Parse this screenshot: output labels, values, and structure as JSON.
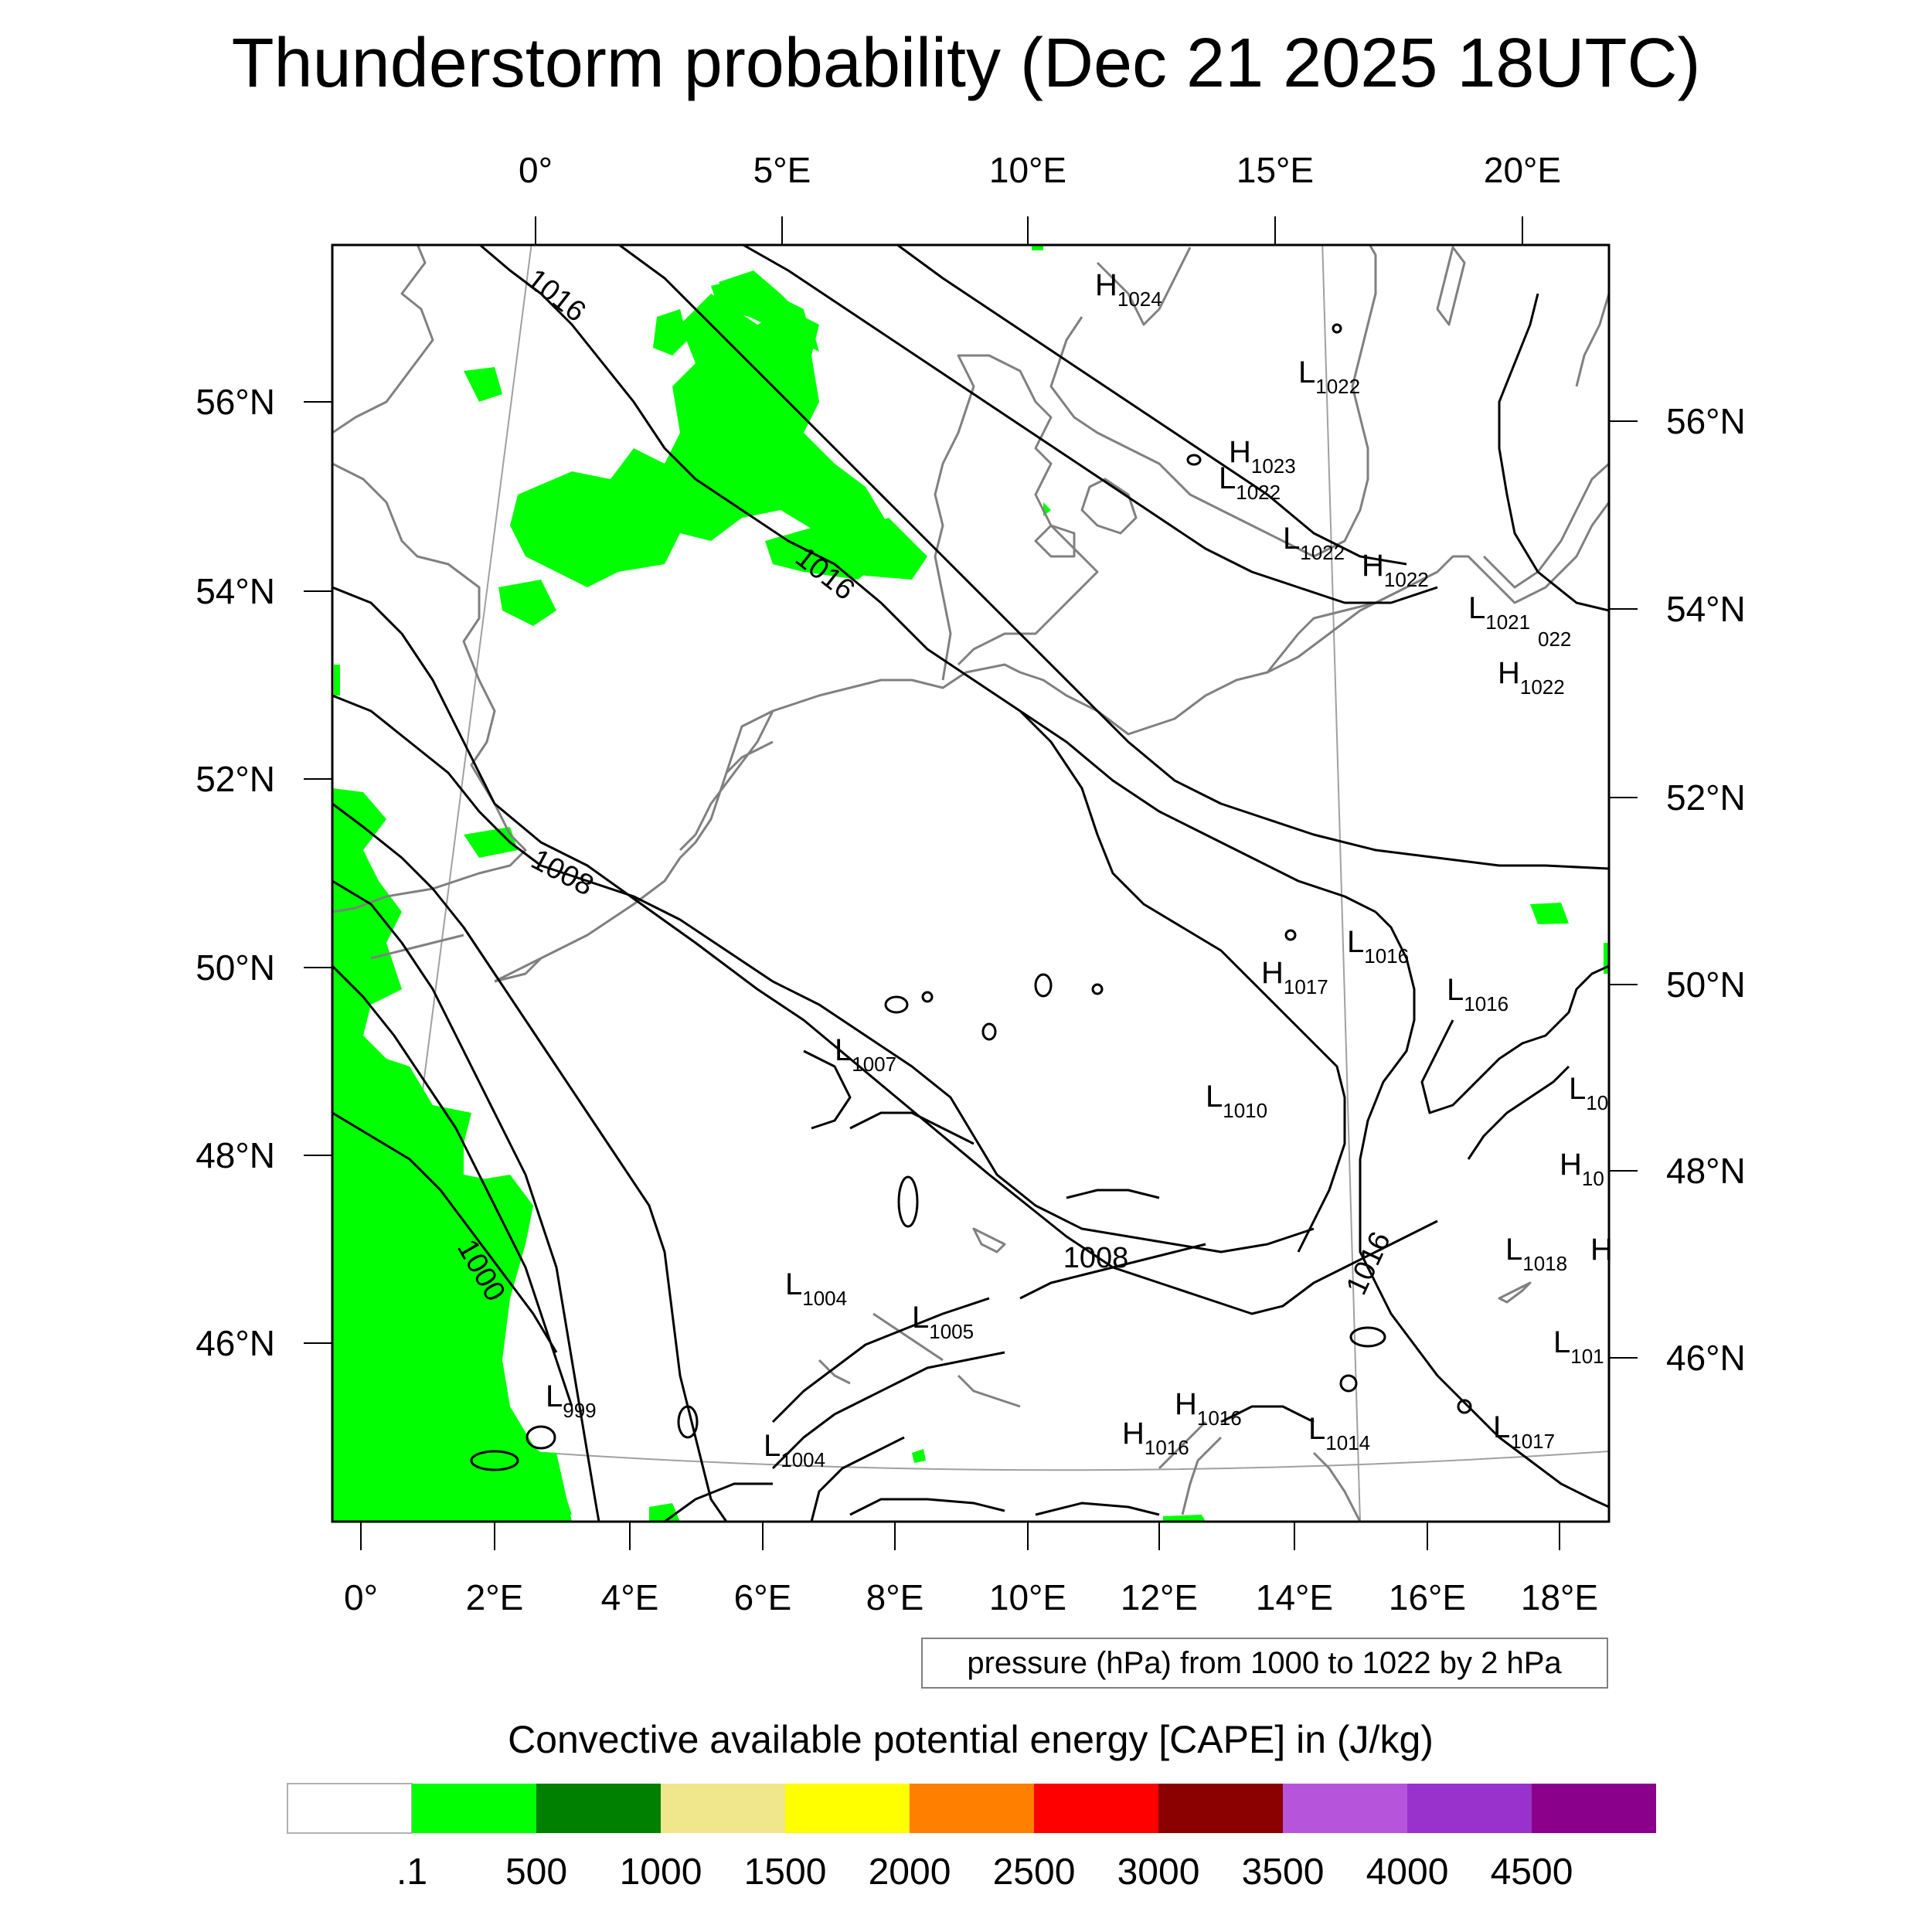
{
  "title": "Thunderstorm probability (Dec 21 2025 18UTC)",
  "top_lon_labels": [
    "0°",
    "5°E",
    "10°E",
    "15°E",
    "20°E"
  ],
  "bottom_lon_labels": [
    "0°",
    "2°E",
    "4°E",
    "6°E",
    "8°E",
    "10°E",
    "12°E",
    "14°E",
    "16°E",
    "18°E"
  ],
  "left_lat_labels": [
    "56°N",
    "54°N",
    "52°N",
    "50°N",
    "48°N",
    "46°N"
  ],
  "right_lat_labels": [
    "56°N",
    "54°N",
    "52°N",
    "50°N",
    "48°N",
    "46°N"
  ],
  "contour_labels": [
    "1016",
    "1016",
    "1008",
    "1000",
    "1008",
    "1016"
  ],
  "pressure_centers": [
    {
      "t": "H",
      "v": "1024"
    },
    {
      "t": "L",
      "v": "1022"
    },
    {
      "t": "H",
      "v": "1023"
    },
    {
      "t": "L",
      "v": "1022"
    },
    {
      "t": "L",
      "v": "1022"
    },
    {
      "t": "H",
      "v": "1022"
    },
    {
      "t": "L",
      "v": "1021"
    },
    {
      "t": "",
      "v": "022"
    },
    {
      "t": "H",
      "v": "1022"
    },
    {
      "t": "L",
      "v": "1016"
    },
    {
      "t": "H",
      "v": "1017"
    },
    {
      "t": "L",
      "v": "1016"
    },
    {
      "t": "L",
      "v": "1007"
    },
    {
      "t": "L",
      "v": "1010"
    },
    {
      "t": "L",
      "v": "10"
    },
    {
      "t": "H",
      "v": "10"
    },
    {
      "t": "L",
      "v": "1018"
    },
    {
      "t": "H",
      "v": ""
    },
    {
      "t": "L",
      "v": "1004"
    },
    {
      "t": "L",
      "v": "1005"
    },
    {
      "t": "L",
      "v": "101"
    },
    {
      "t": "L",
      "v": "999"
    },
    {
      "t": "H",
      "v": "1016"
    },
    {
      "t": "H",
      "v": "1016"
    },
    {
      "t": "L",
      "v": "1014"
    },
    {
      "t": "L",
      "v": "1017"
    },
    {
      "t": "L",
      "v": "1004"
    }
  ],
  "contour_info": "pressure (hPa) from 1000 to 1022 by 2 hPa",
  "colorbar": {
    "title": "Convective available potential energy [CAPE] in (J/kg)",
    "colors": [
      "#ffffff",
      "#00ff00",
      "#008000",
      "#f0e68c",
      "#ffff00",
      "#ff8000",
      "#ff0000",
      "#8b0000",
      "#b655dc",
      "#9932cc",
      "#8b008b"
    ],
    "labels": [
      ".1",
      "500",
      "1000",
      "1500",
      "2000",
      "2500",
      "3000",
      "3500",
      "4000",
      "4500"
    ]
  },
  "colors": {
    "coastline": "#808080",
    "isobar": "#000000",
    "cape_low": "#00ff00",
    "graticule": "#a0a0a0"
  }
}
